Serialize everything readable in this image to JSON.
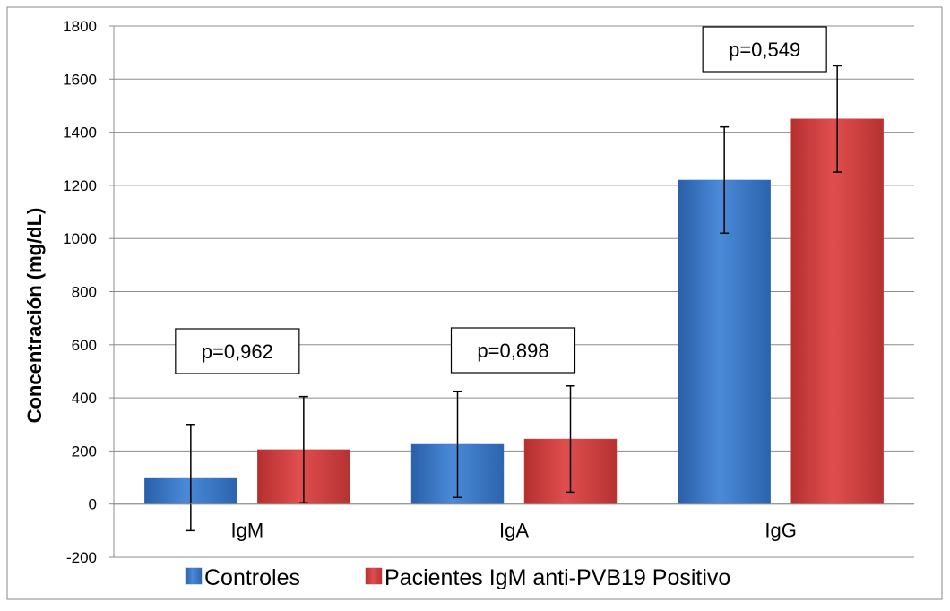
{
  "chart_data": {
    "type": "bar",
    "title": "",
    "xlabel": "",
    "ylabel": "Concentración  (mg/dL)",
    "ylim": [
      -200,
      1800
    ],
    "yticks": [
      -200,
      0,
      200,
      400,
      600,
      800,
      1000,
      1200,
      1400,
      1600,
      1800
    ],
    "ytick_labels": [
      "-200",
      "0",
      "200",
      "400",
      "600",
      "800",
      "1000",
      "1200",
      "1400",
      "1600",
      "1800"
    ],
    "grid": true,
    "legend_position": "bottom",
    "categories": [
      "IgM",
      "IgA",
      "IgG"
    ],
    "series": [
      {
        "name": "Controles",
        "color": "#3a78c9",
        "values": [
          100,
          225,
          1220
        ],
        "error": [
          200,
          200,
          200
        ]
      },
      {
        "name": "Pacientes IgM anti-PVB19 Positivo",
        "color": "#d13e3e",
        "values": [
          205,
          245,
          1450
        ],
        "error": [
          200,
          200,
          200
        ]
      }
    ],
    "annotations": [
      "p=0,962",
      "p=0,898",
      "p=0,549"
    ]
  }
}
